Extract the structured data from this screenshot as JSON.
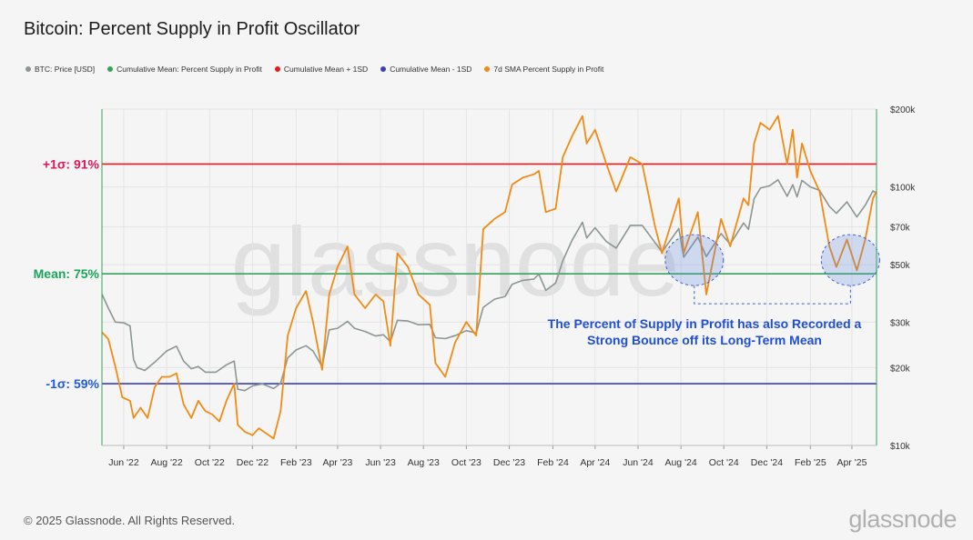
{
  "title": "Bitcoin: Percent Supply in Profit Oscillator",
  "footer": "© 2025 Glassnode. All Rights Reserved.",
  "watermark": "glassnode",
  "legend": [
    {
      "label": "BTC: Price [USD]",
      "color": "#8c9694"
    },
    {
      "label": "Cumulative Mean: Percent Supply in Profit",
      "color": "#35a35a"
    },
    {
      "label": "Cumulative Mean + 1SD",
      "color": "#e8181d"
    },
    {
      "label": "Cumulative Mean - 1SD",
      "color": "#3b3fb3"
    },
    {
      "label": "7d SMA Percent Supply in Profit",
      "color": "#f28b15"
    }
  ],
  "annotation": {
    "line1": "The Percent of Supply in Profit has also Recorded a",
    "line2": "Strong Bounce off its Long-Term Mean"
  },
  "chart_data": {
    "type": "line",
    "x_ticks": [
      "Jun '22",
      "Aug '22",
      "Oct '22",
      "Dec '22",
      "Feb '23",
      "Apr '23",
      "Jun '23",
      "Aug '23",
      "Oct '23",
      "Dec '23",
      "Feb '24",
      "Apr '24",
      "Jun '24",
      "Aug '24",
      "Oct '24",
      "Dec '24",
      "Feb '25",
      "Apr '25"
    ],
    "x_ticks_dates": [
      "2022-06-01",
      "2022-08-01",
      "2022-10-01",
      "2022-12-01",
      "2023-02-01",
      "2023-04-01",
      "2023-06-01",
      "2023-08-01",
      "2023-10-01",
      "2023-12-01",
      "2024-02-01",
      "2024-04-01",
      "2024-06-01",
      "2024-08-01",
      "2024-10-01",
      "2024-12-01",
      "2025-02-01",
      "2025-04-01"
    ],
    "x_range": [
      "2022-05-01",
      "2025-05-06"
    ],
    "left_axis": {
      "range": [
        50,
        99
      ],
      "levels": [
        {
          "name": "+1σ",
          "label": "+1σ: 91%",
          "value": 91,
          "color": "#e8181d"
        },
        {
          "name": "mean",
          "label": "Mean: 75%",
          "value": 75,
          "color": "#35a35a"
        },
        {
          "name": "-1σ",
          "label": "-1σ: 59%",
          "value": 59,
          "color": "#3b3fb3"
        }
      ],
      "label_colors": {
        "plus": "#e0185a",
        "mean": "#1aa55a",
        "minus": "#1f5ae0"
      }
    },
    "right_axis": {
      "scale": "log",
      "range": [
        10000,
        200000
      ],
      "ticks": [
        10000,
        20000,
        30000,
        50000,
        70000,
        100000,
        200000
      ],
      "tick_labels": [
        "$10k",
        "$20k",
        "$30k",
        "$50k",
        "$70k",
        "$100k",
        "$200k"
      ]
    },
    "series": [
      {
        "name": "BTC: Price [USD]",
        "color": "#8c9694",
        "axis": "right",
        "points": [
          [
            "2022-05-01",
            38500
          ],
          [
            "2022-05-10",
            34000
          ],
          [
            "2022-05-20",
            30000
          ],
          [
            "2022-06-01",
            29800
          ],
          [
            "2022-06-10",
            29000
          ],
          [
            "2022-06-15",
            21500
          ],
          [
            "2022-06-20",
            20000
          ],
          [
            "2022-07-01",
            19500
          ],
          [
            "2022-07-15",
            21000
          ],
          [
            "2022-08-01",
            23200
          ],
          [
            "2022-08-15",
            24200
          ],
          [
            "2022-08-25",
            21200
          ],
          [
            "2022-09-05",
            19800
          ],
          [
            "2022-09-15",
            20200
          ],
          [
            "2022-09-25",
            19200
          ],
          [
            "2022-10-10",
            19200
          ],
          [
            "2022-10-25",
            20500
          ],
          [
            "2022-11-05",
            21200
          ],
          [
            "2022-11-10",
            16500
          ],
          [
            "2022-11-20",
            16300
          ],
          [
            "2022-12-01",
            17000
          ],
          [
            "2022-12-15",
            17300
          ],
          [
            "2022-12-31",
            16600
          ],
          [
            "2023-01-10",
            17400
          ],
          [
            "2023-01-20",
            21800
          ],
          [
            "2023-02-01",
            23400
          ],
          [
            "2023-02-15",
            24300
          ],
          [
            "2023-02-25",
            23200
          ],
          [
            "2023-03-10",
            20200
          ],
          [
            "2023-03-20",
            28000
          ],
          [
            "2023-04-01",
            28400
          ],
          [
            "2023-04-15",
            30200
          ],
          [
            "2023-04-25",
            28400
          ],
          [
            "2023-05-10",
            27600
          ],
          [
            "2023-05-25",
            26500
          ],
          [
            "2023-06-05",
            26800
          ],
          [
            "2023-06-15",
            25200
          ],
          [
            "2023-06-25",
            30500
          ],
          [
            "2023-07-10",
            30300
          ],
          [
            "2023-07-25",
            29300
          ],
          [
            "2023-08-10",
            29400
          ],
          [
            "2023-08-18",
            26100
          ],
          [
            "2023-09-01",
            25900
          ],
          [
            "2023-09-15",
            26600
          ],
          [
            "2023-10-01",
            27800
          ],
          [
            "2023-10-15",
            27200
          ],
          [
            "2023-10-25",
            34200
          ],
          [
            "2023-11-10",
            36800
          ],
          [
            "2023-11-25",
            37700
          ],
          [
            "2023-12-05",
            42000
          ],
          [
            "2023-12-20",
            43500
          ],
          [
            "2024-01-05",
            44000
          ],
          [
            "2024-01-12",
            46000
          ],
          [
            "2024-01-22",
            39800
          ],
          [
            "2024-02-05",
            42500
          ],
          [
            "2024-02-15",
            51800
          ],
          [
            "2024-02-28",
            62000
          ],
          [
            "2024-03-14",
            73000
          ],
          [
            "2024-03-20",
            63500
          ],
          [
            "2024-04-01",
            69500
          ],
          [
            "2024-04-17",
            61500
          ],
          [
            "2024-05-01",
            58000
          ],
          [
            "2024-05-21",
            71000
          ],
          [
            "2024-06-07",
            71000
          ],
          [
            "2024-06-25",
            61000
          ],
          [
            "2024-07-05",
            56000
          ],
          [
            "2024-07-29",
            69000
          ],
          [
            "2024-08-05",
            53500
          ],
          [
            "2024-08-25",
            64000
          ],
          [
            "2024-09-06",
            53800
          ],
          [
            "2024-09-27",
            66000
          ],
          [
            "2024-10-10",
            60000
          ],
          [
            "2024-10-29",
            72500
          ],
          [
            "2024-11-05",
            68500
          ],
          [
            "2024-11-13",
            90000
          ],
          [
            "2024-11-22",
            99000
          ],
          [
            "2024-12-05",
            101000
          ],
          [
            "2024-12-17",
            106500
          ],
          [
            "2024-12-30",
            92000
          ],
          [
            "2025-01-07",
            102000
          ],
          [
            "2025-01-13",
            91500
          ],
          [
            "2025-01-20",
            106000
          ],
          [
            "2025-02-01",
            100000
          ],
          [
            "2025-02-14",
            97000
          ],
          [
            "2025-02-28",
            84000
          ],
          [
            "2025-03-10",
            79000
          ],
          [
            "2025-03-25",
            87500
          ],
          [
            "2025-04-08",
            76500
          ],
          [
            "2025-04-20",
            85000
          ],
          [
            "2025-05-01",
            96500
          ],
          [
            "2025-05-06",
            94500
          ]
        ]
      },
      {
        "name": "7d SMA Percent Supply in Profit",
        "color": "#f28b15",
        "axis": "left",
        "points": [
          [
            "2022-05-01",
            66.5
          ],
          [
            "2022-05-10",
            65.5
          ],
          [
            "2022-05-20",
            61.5
          ],
          [
            "2022-05-30",
            57
          ],
          [
            "2022-06-10",
            56.5
          ],
          [
            "2022-06-15",
            54
          ],
          [
            "2022-06-25",
            55.5
          ],
          [
            "2022-07-05",
            54
          ],
          [
            "2022-07-15",
            58.5
          ],
          [
            "2022-07-25",
            60
          ],
          [
            "2022-08-05",
            60
          ],
          [
            "2022-08-15",
            60.5
          ],
          [
            "2022-08-25",
            56
          ],
          [
            "2022-09-05",
            54
          ],
          [
            "2022-09-15",
            56.5
          ],
          [
            "2022-09-25",
            55
          ],
          [
            "2022-10-05",
            54.5
          ],
          [
            "2022-10-15",
            53.5
          ],
          [
            "2022-10-25",
            56.5
          ],
          [
            "2022-11-05",
            59
          ],
          [
            "2022-11-10",
            53
          ],
          [
            "2022-11-20",
            52
          ],
          [
            "2022-12-01",
            51.5
          ],
          [
            "2022-12-10",
            52.5
          ],
          [
            "2022-12-31",
            51
          ],
          [
            "2023-01-10",
            55
          ],
          [
            "2023-01-20",
            66
          ],
          [
            "2023-02-01",
            70
          ],
          [
            "2023-02-15",
            72.5
          ],
          [
            "2023-02-25",
            68
          ],
          [
            "2023-03-10",
            61
          ],
          [
            "2023-03-20",
            72
          ],
          [
            "2023-04-01",
            76
          ],
          [
            "2023-04-15",
            79
          ],
          [
            "2023-04-25",
            72
          ],
          [
            "2023-05-10",
            70
          ],
          [
            "2023-05-25",
            72
          ],
          [
            "2023-06-05",
            71
          ],
          [
            "2023-06-15",
            64.5
          ],
          [
            "2023-06-25",
            78
          ],
          [
            "2023-07-10",
            76
          ],
          [
            "2023-07-25",
            72
          ],
          [
            "2023-08-10",
            70.5
          ],
          [
            "2023-08-18",
            62
          ],
          [
            "2023-09-01",
            60
          ],
          [
            "2023-09-15",
            65
          ],
          [
            "2023-10-01",
            68
          ],
          [
            "2023-10-15",
            66
          ],
          [
            "2023-10-25",
            81.5
          ],
          [
            "2023-11-10",
            83
          ],
          [
            "2023-11-25",
            84
          ],
          [
            "2023-12-05",
            88
          ],
          [
            "2023-12-20",
            89
          ],
          [
            "2024-01-05",
            89.5
          ],
          [
            "2024-01-12",
            90
          ],
          [
            "2024-01-22",
            84
          ],
          [
            "2024-02-05",
            84.5
          ],
          [
            "2024-02-15",
            92
          ],
          [
            "2024-02-28",
            95
          ],
          [
            "2024-03-14",
            98
          ],
          [
            "2024-03-20",
            94
          ],
          [
            "2024-04-01",
            96
          ],
          [
            "2024-04-17",
            91
          ],
          [
            "2024-05-01",
            87
          ],
          [
            "2024-05-21",
            92
          ],
          [
            "2024-06-07",
            91
          ],
          [
            "2024-06-25",
            82
          ],
          [
            "2024-07-05",
            78
          ],
          [
            "2024-07-29",
            86
          ],
          [
            "2024-08-05",
            78
          ],
          [
            "2024-08-25",
            84
          ],
          [
            "2024-09-06",
            72
          ],
          [
            "2024-09-27",
            83
          ],
          [
            "2024-10-10",
            79
          ],
          [
            "2024-10-29",
            86
          ],
          [
            "2024-11-05",
            85
          ],
          [
            "2024-11-13",
            94
          ],
          [
            "2024-11-22",
            97
          ],
          [
            "2024-12-05",
            96
          ],
          [
            "2024-12-17",
            98
          ],
          [
            "2024-12-30",
            91
          ],
          [
            "2025-01-07",
            96
          ],
          [
            "2025-01-13",
            89
          ],
          [
            "2025-01-20",
            94
          ],
          [
            "2025-02-01",
            90
          ],
          [
            "2025-02-14",
            87
          ],
          [
            "2025-02-28",
            79
          ],
          [
            "2025-03-10",
            76
          ],
          [
            "2025-03-25",
            80
          ],
          [
            "2025-04-08",
            75.5
          ],
          [
            "2025-04-20",
            80
          ],
          [
            "2025-05-01",
            86
          ],
          [
            "2025-05-06",
            87
          ]
        ]
      }
    ]
  }
}
